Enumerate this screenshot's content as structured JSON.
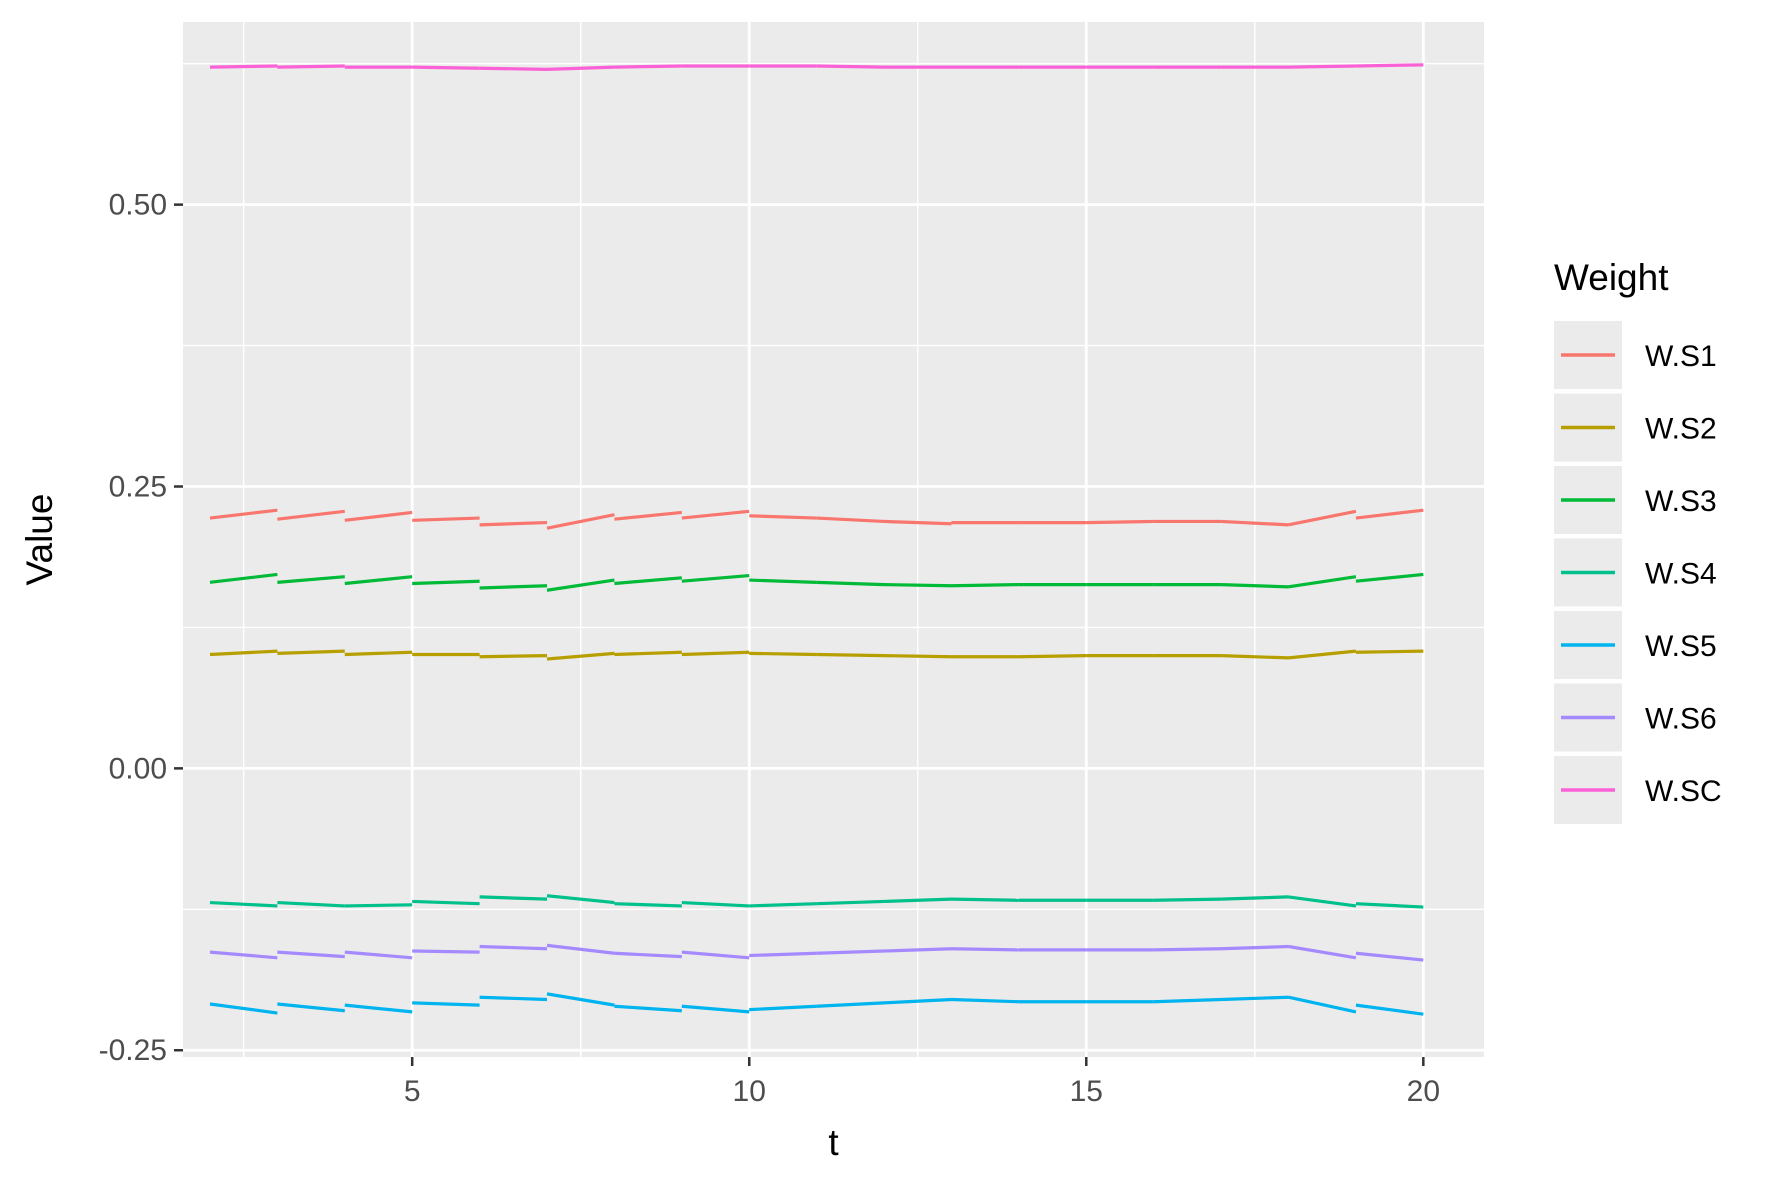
{
  "chart_data": {
    "type": "line",
    "xlabel": "t",
    "ylabel": "Value",
    "xlim": [
      1.6,
      20.9
    ],
    "ylim": [
      -0.256,
      0.662
    ],
    "x_ticks": [
      5,
      10,
      15,
      20
    ],
    "x_tick_labels": [
      "5",
      "10",
      "15",
      "20"
    ],
    "y_ticks": [
      -0.25,
      0,
      0.25,
      0.5
    ],
    "y_tick_labels": [
      "-0.25",
      "0.00",
      "0.25",
      "0.50"
    ],
    "x_minor_ticks": [
      2.5,
      7.5,
      12.5,
      17.5
    ],
    "y_minor_ticks": [
      -0.125,
      0.125,
      0.375,
      0.625
    ],
    "grid": true,
    "panel_background": "#ebebeb",
    "legend": {
      "title": "Weight",
      "position": "right"
    },
    "segments": [
      [
        2,
        3
      ],
      [
        3,
        4
      ],
      [
        4,
        5
      ],
      [
        5,
        6
      ],
      [
        6,
        7
      ],
      [
        7,
        8
      ],
      [
        8,
        9
      ],
      [
        9,
        10
      ],
      [
        10,
        11
      ],
      [
        11,
        12
      ],
      [
        12,
        13
      ],
      [
        13,
        14
      ],
      [
        14,
        15
      ],
      [
        15,
        16
      ],
      [
        16,
        17
      ],
      [
        17,
        18
      ],
      [
        18,
        19
      ],
      [
        19,
        20
      ]
    ],
    "series": [
      {
        "name": "W.S1",
        "color": "#F8766D",
        "segments": [
          [
            0.222,
            0.229
          ],
          [
            0.221,
            0.228
          ],
          [
            0.22,
            0.227
          ],
          [
            0.22,
            0.222
          ],
          [
            0.216,
            0.218
          ],
          [
            0.213,
            0.225
          ],
          [
            0.221,
            0.227
          ],
          [
            0.222,
            0.228
          ],
          [
            0.224,
            0.222
          ],
          [
            0.222,
            0.219
          ],
          [
            0.219,
            0.217
          ],
          [
            0.218,
            0.218
          ],
          [
            0.218,
            0.218
          ],
          [
            0.218,
            0.219
          ],
          [
            0.219,
            0.219
          ],
          [
            0.219,
            0.216
          ],
          [
            0.216,
            0.228
          ],
          [
            0.222,
            0.229
          ]
        ]
      },
      {
        "name": "W.S2",
        "color": "#B79F00",
        "segments": [
          [
            0.101,
            0.104
          ],
          [
            0.102,
            0.104
          ],
          [
            0.101,
            0.103
          ],
          [
            0.101,
            0.101
          ],
          [
            0.099,
            0.1
          ],
          [
            0.097,
            0.102
          ],
          [
            0.101,
            0.103
          ],
          [
            0.101,
            0.103
          ],
          [
            0.102,
            0.101
          ],
          [
            0.101,
            0.1
          ],
          [
            0.1,
            0.099
          ],
          [
            0.099,
            0.099
          ],
          [
            0.099,
            0.1
          ],
          [
            0.1,
            0.1
          ],
          [
            0.1,
            0.1
          ],
          [
            0.1,
            0.098
          ],
          [
            0.098,
            0.104
          ],
          [
            0.103,
            0.104
          ]
        ]
      },
      {
        "name": "W.S3",
        "color": "#00BA38",
        "segments": [
          [
            0.165,
            0.172
          ],
          [
            0.165,
            0.17
          ],
          [
            0.164,
            0.17
          ],
          [
            0.164,
            0.166
          ],
          [
            0.16,
            0.162
          ],
          [
            0.158,
            0.167
          ],
          [
            0.164,
            0.169
          ],
          [
            0.166,
            0.171
          ],
          [
            0.167,
            0.165
          ],
          [
            0.165,
            0.163
          ],
          [
            0.163,
            0.162
          ],
          [
            0.162,
            0.163
          ],
          [
            0.163,
            0.163
          ],
          [
            0.163,
            0.163
          ],
          [
            0.163,
            0.163
          ],
          [
            0.163,
            0.161
          ],
          [
            0.161,
            0.17
          ],
          [
            0.166,
            0.172
          ]
        ]
      },
      {
        "name": "W.S4",
        "color": "#00C08B",
        "segments": [
          [
            -0.119,
            -0.122
          ],
          [
            -0.119,
            -0.122
          ],
          [
            -0.122,
            -0.121
          ],
          [
            -0.118,
            -0.12
          ],
          [
            -0.114,
            -0.116
          ],
          [
            -0.113,
            -0.119
          ],
          [
            -0.12,
            -0.122
          ],
          [
            -0.119,
            -0.122
          ],
          [
            -0.122,
            -0.12
          ],
          [
            -0.12,
            -0.118
          ],
          [
            -0.118,
            -0.116
          ],
          [
            -0.116,
            -0.117
          ],
          [
            -0.117,
            -0.117
          ],
          [
            -0.117,
            -0.117
          ],
          [
            -0.117,
            -0.116
          ],
          [
            -0.116,
            -0.114
          ],
          [
            -0.114,
            -0.122
          ],
          [
            -0.12,
            -0.123
          ]
        ]
      },
      {
        "name": "W.S5",
        "color": "#00B4EF",
        "segments": [
          [
            -0.209,
            -0.217
          ],
          [
            -0.209,
            -0.215
          ],
          [
            -0.21,
            -0.216
          ],
          [
            -0.208,
            -0.21
          ],
          [
            -0.203,
            -0.205
          ],
          [
            -0.2,
            -0.21
          ],
          [
            -0.211,
            -0.215
          ],
          [
            -0.211,
            -0.216
          ],
          [
            -0.214,
            -0.211
          ],
          [
            -0.211,
            -0.208
          ],
          [
            -0.208,
            -0.205
          ],
          [
            -0.205,
            -0.207
          ],
          [
            -0.207,
            -0.207
          ],
          [
            -0.207,
            -0.207
          ],
          [
            -0.207,
            -0.205
          ],
          [
            -0.205,
            -0.203
          ],
          [
            -0.203,
            -0.216
          ],
          [
            -0.21,
            -0.218
          ]
        ]
      },
      {
        "name": "W.S6",
        "color": "#A58AFF",
        "segments": [
          [
            -0.163,
            -0.168
          ],
          [
            -0.163,
            -0.167
          ],
          [
            -0.163,
            -0.168
          ],
          [
            -0.162,
            -0.163
          ],
          [
            -0.158,
            -0.16
          ],
          [
            -0.157,
            -0.164
          ],
          [
            -0.164,
            -0.167
          ],
          [
            -0.163,
            -0.168
          ],
          [
            -0.166,
            -0.164
          ],
          [
            -0.164,
            -0.162
          ],
          [
            -0.162,
            -0.16
          ],
          [
            -0.16,
            -0.161
          ],
          [
            -0.161,
            -0.161
          ],
          [
            -0.161,
            -0.161
          ],
          [
            -0.161,
            -0.16
          ],
          [
            -0.16,
            -0.158
          ],
          [
            -0.158,
            -0.168
          ],
          [
            -0.164,
            -0.17
          ]
        ]
      },
      {
        "name": "W.SC",
        "color": "#FB61D7",
        "segments": [
          [
            0.622,
            0.623
          ],
          [
            0.622,
            0.623
          ],
          [
            0.622,
            0.622
          ],
          [
            0.622,
            0.621
          ],
          [
            0.621,
            0.62
          ],
          [
            0.62,
            0.622
          ],
          [
            0.622,
            0.623
          ],
          [
            0.623,
            0.623
          ],
          [
            0.623,
            0.623
          ],
          [
            0.623,
            0.622
          ],
          [
            0.622,
            0.622
          ],
          [
            0.622,
            0.622
          ],
          [
            0.622,
            0.622
          ],
          [
            0.622,
            0.622
          ],
          [
            0.622,
            0.622
          ],
          [
            0.622,
            0.622
          ],
          [
            0.622,
            0.623
          ],
          [
            0.623,
            0.624
          ]
        ]
      }
    ]
  }
}
